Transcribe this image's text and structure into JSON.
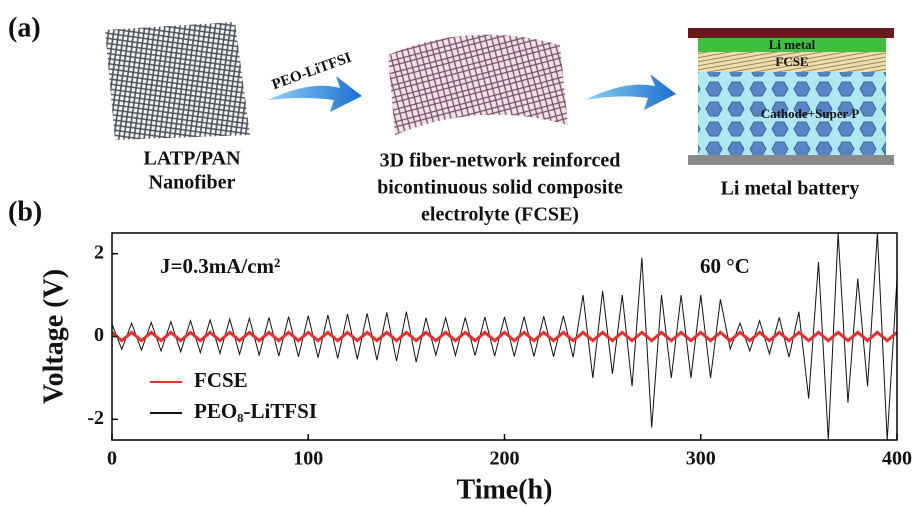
{
  "panel_labels": [
    "(a)",
    "(b)"
  ],
  "schematic": {
    "arrow_label": "PEO-LiTFSI",
    "nanofiber_caption": [
      "LATP/PAN",
      "Nanofiber"
    ],
    "fcse_caption": [
      "3D fiber-network reinforced",
      "bicontinuous solid composite",
      "electrolyte (FCSE)"
    ],
    "battery_caption": "Li metal battery",
    "battery_layers": [
      "Li metal",
      "FCSE",
      "Cathode+Super P"
    ]
  },
  "chart_data": {
    "type": "line",
    "xlabel": "Time(h)",
    "ylabel": "Voltage (V)",
    "annotations": [
      "J=0.3mA/cm²",
      "60 °C"
    ],
    "xlim": [
      0,
      400
    ],
    "xticks": [
      0,
      100,
      200,
      300,
      400
    ],
    "ylim": [
      -2.5,
      2.5
    ],
    "yticks": [
      -2,
      0,
      2
    ],
    "legend": "lower left",
    "x": [
      0,
      5,
      10,
      15,
      20,
      25,
      30,
      35,
      40,
      45,
      50,
      55,
      60,
      65,
      70,
      75,
      80,
      85,
      90,
      95,
      100,
      105,
      110,
      115,
      120,
      125,
      130,
      135,
      140,
      145,
      150,
      155,
      160,
      165,
      170,
      175,
      180,
      185,
      190,
      195,
      200,
      205,
      210,
      215,
      220,
      225,
      230,
      235,
      240,
      245,
      250,
      255,
      260,
      265,
      270,
      275,
      280,
      285,
      290,
      295,
      300,
      305,
      310,
      315,
      320,
      325,
      330,
      335,
      340,
      345,
      350,
      355,
      360,
      365,
      370,
      375,
      380,
      385,
      390,
      395,
      400
    ],
    "series": [
      {
        "name": "FCSE",
        "color": "#e8302a",
        "values": [
          0.1,
          -0.1,
          0.1,
          -0.1,
          0.1,
          -0.1,
          0.1,
          -0.1,
          0.1,
          -0.1,
          0.1,
          -0.1,
          0.1,
          -0.1,
          0.1,
          -0.1,
          0.1,
          -0.1,
          0.1,
          -0.1,
          0.1,
          -0.1,
          0.1,
          -0.1,
          0.1,
          -0.1,
          0.1,
          -0.1,
          0.1,
          -0.1,
          0.1,
          -0.1,
          0.1,
          -0.1,
          0.1,
          -0.1,
          0.1,
          -0.1,
          0.1,
          -0.1,
          0.1,
          -0.1,
          0.1,
          -0.1,
          0.1,
          -0.1,
          0.1,
          -0.1,
          0.1,
          -0.1,
          0.1,
          -0.1,
          0.1,
          -0.1,
          0.1,
          -0.1,
          0.1,
          -0.1,
          0.1,
          -0.1,
          0.1,
          -0.1,
          0.1,
          -0.1,
          0.1,
          -0.1,
          0.1,
          -0.1,
          0.1,
          -0.1,
          0.1,
          -0.1,
          0.1,
          -0.1,
          0.1,
          -0.1,
          0.1,
          -0.1,
          0.1,
          -0.1,
          0.1
        ]
      },
      {
        "name": "PEO₈-LiTFSI",
        "color": "#111111",
        "values": [
          0.3,
          -0.31,
          0.32,
          -0.33,
          0.34,
          -0.35,
          0.36,
          -0.37,
          0.38,
          -0.39,
          0.4,
          -0.41,
          0.42,
          -0.43,
          0.44,
          -0.45,
          0.46,
          -0.47,
          0.48,
          -0.49,
          0.5,
          -0.51,
          0.52,
          -0.53,
          0.54,
          -0.55,
          0.56,
          -0.57,
          0.58,
          -0.59,
          0.6,
          -0.62,
          0.45,
          -0.45,
          0.45,
          -0.46,
          0.46,
          -0.46,
          0.47,
          -0.47,
          0.47,
          -0.48,
          0.48,
          -0.48,
          0.49,
          -0.49,
          0.5,
          -0.5,
          1.0,
          -1.0,
          1.1,
          -0.9,
          1.0,
          -1.2,
          1.9,
          -2.2,
          1.0,
          -1.0,
          1.0,
          -1.0,
          1.0,
          -1.0,
          0.9,
          -0.3,
          0.32,
          -0.35,
          0.38,
          -0.42,
          0.46,
          -0.5,
          0.6,
          -1.5,
          1.8,
          -2.5,
          2.5,
          -1.6,
          1.4,
          -1.2,
          2.5,
          -2.5,
          1.4
        ]
      }
    ]
  }
}
